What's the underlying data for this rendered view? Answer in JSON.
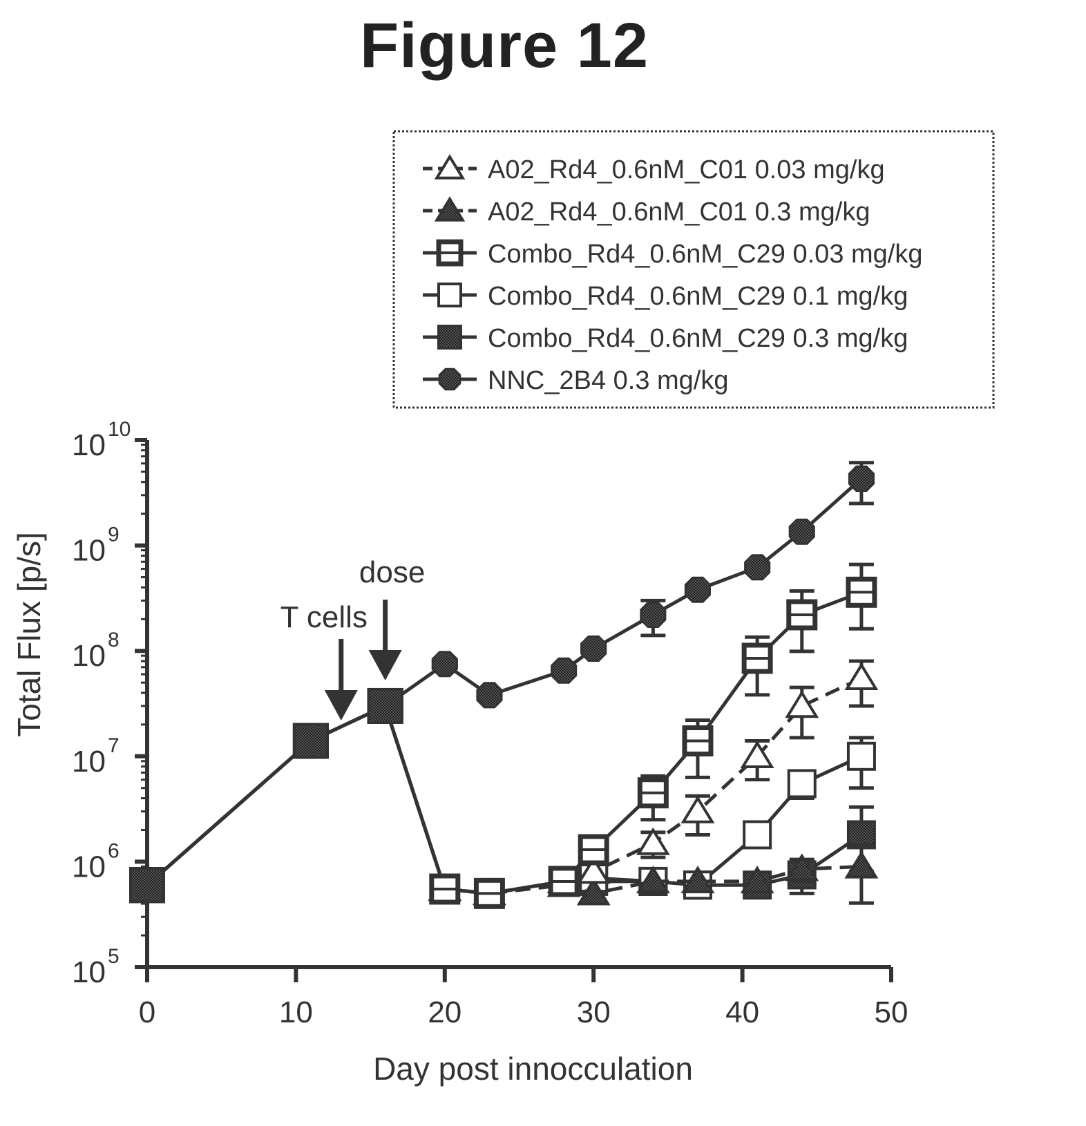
{
  "figure_title": "Figure 12",
  "chart_data": {
    "type": "line",
    "xlabel": "Day post innocculation",
    "ylabel": "Total Flux [p/s]",
    "xlim": [
      0,
      50
    ],
    "ylim": [
      100000,
      10000000000
    ],
    "yscale": "log",
    "x_ticks": [
      "0",
      "10",
      "20",
      "30",
      "40",
      "50"
    ],
    "y_ticks": [
      {
        "base": "10",
        "exp": "5",
        "value": 100000
      },
      {
        "base": "10",
        "exp": "6",
        "value": 1000000
      },
      {
        "base": "10",
        "exp": "7",
        "value": 10000000
      },
      {
        "base": "10",
        "exp": "8",
        "value": 100000000
      },
      {
        "base": "10",
        "exp": "9",
        "value": 1000000000
      },
      {
        "base": "10",
        "exp": "10",
        "value": 10000000000
      }
    ],
    "legend_position": "top-right",
    "annotations": [
      {
        "text": "T cells",
        "x": 13.5
      },
      {
        "text": "dose",
        "x": 16
      }
    ],
    "series": [
      {
        "name": "A02_Rd4_0.6nM_C01 0.03 mg/kg",
        "marker": "triangle-open",
        "line": "dashed",
        "x": [
          0,
          11,
          16,
          20,
          23,
          28,
          30,
          34,
          37,
          41,
          44,
          48
        ],
        "y": [
          600000,
          14000000,
          30000000,
          550000,
          500000,
          650000,
          800000,
          1500000,
          3000000,
          10000000,
          30000000,
          55000000
        ],
        "err": [
          0,
          0,
          0,
          0,
          0,
          0,
          0,
          400000,
          1200000,
          4000000,
          15000000,
          25000000
        ]
      },
      {
        "name": "A02_Rd4_0.6nM_C01 0.3 mg/kg",
        "marker": "triangle-filled",
        "line": "dashed",
        "x": [
          0,
          11,
          16,
          20,
          23,
          28,
          30,
          34,
          37,
          41,
          44,
          48
        ],
        "y": [
          600000,
          14000000,
          30000000,
          550000,
          500000,
          600000,
          500000,
          650000,
          650000,
          650000,
          850000,
          900000
        ],
        "err": [
          0,
          0,
          0,
          0,
          0,
          0,
          0,
          0,
          0,
          0,
          200000,
          550000
        ]
      },
      {
        "name": "Combo_Rd4_0.6nM_C29 0.03 mg/kg",
        "marker": "square-half",
        "line": "solid",
        "x": [
          0,
          11,
          16,
          20,
          23,
          28,
          30,
          34,
          37,
          41,
          44,
          48
        ],
        "y": [
          600000,
          14000000,
          30000000,
          550000,
          500000,
          650000,
          1300000,
          4500000,
          14000000,
          85000000,
          220000000,
          360000000
        ],
        "err": [
          0,
          0,
          0,
          0,
          0,
          0,
          300000,
          2000000,
          8000000,
          50000000,
          150000000,
          300000000
        ]
      },
      {
        "name": "Combo_Rd4_0.6nM_C29 0.1 mg/kg",
        "marker": "square-open",
        "line": "solid",
        "x": [
          0,
          11,
          16,
          20,
          23,
          28,
          30,
          34,
          37,
          41,
          44,
          48
        ],
        "y": [
          600000,
          14000000,
          30000000,
          550000,
          500000,
          650000,
          700000,
          650000,
          600000,
          1800000,
          5500000,
          10000000
        ],
        "err": [
          0,
          0,
          0,
          0,
          0,
          0,
          0,
          0,
          0,
          400000,
          1500000,
          5000000
        ]
      },
      {
        "name": "Combo_Rd4_0.6nM_C29 0.3 mg/kg",
        "marker": "square-filled",
        "line": "solid",
        "x": [
          0,
          11,
          16,
          20,
          23,
          28,
          30,
          34,
          37,
          41,
          44,
          48
        ],
        "y": [
          600000,
          14000000,
          30000000,
          550000,
          500000,
          650000,
          650000,
          650000,
          600000,
          600000,
          750000,
          1800000
        ],
        "err": [
          0,
          0,
          0,
          0,
          0,
          0,
          0,
          0,
          0,
          0,
          250000,
          1500000
        ]
      },
      {
        "name": "NNC_2B4 0.3 mg/kg",
        "marker": "circle-filled",
        "line": "solid",
        "x": [
          0,
          11,
          16,
          20,
          23,
          28,
          30,
          34,
          37,
          41,
          44,
          48
        ],
        "y": [
          600000,
          14000000,
          30000000,
          75000000,
          38000000,
          65000000,
          105000000,
          220000000,
          380000000,
          620000000,
          1350000000,
          4300000000
        ],
        "err": [
          0,
          0,
          0,
          0,
          0,
          0,
          0,
          80000000,
          0,
          0,
          0,
          1800000000
        ]
      }
    ]
  }
}
